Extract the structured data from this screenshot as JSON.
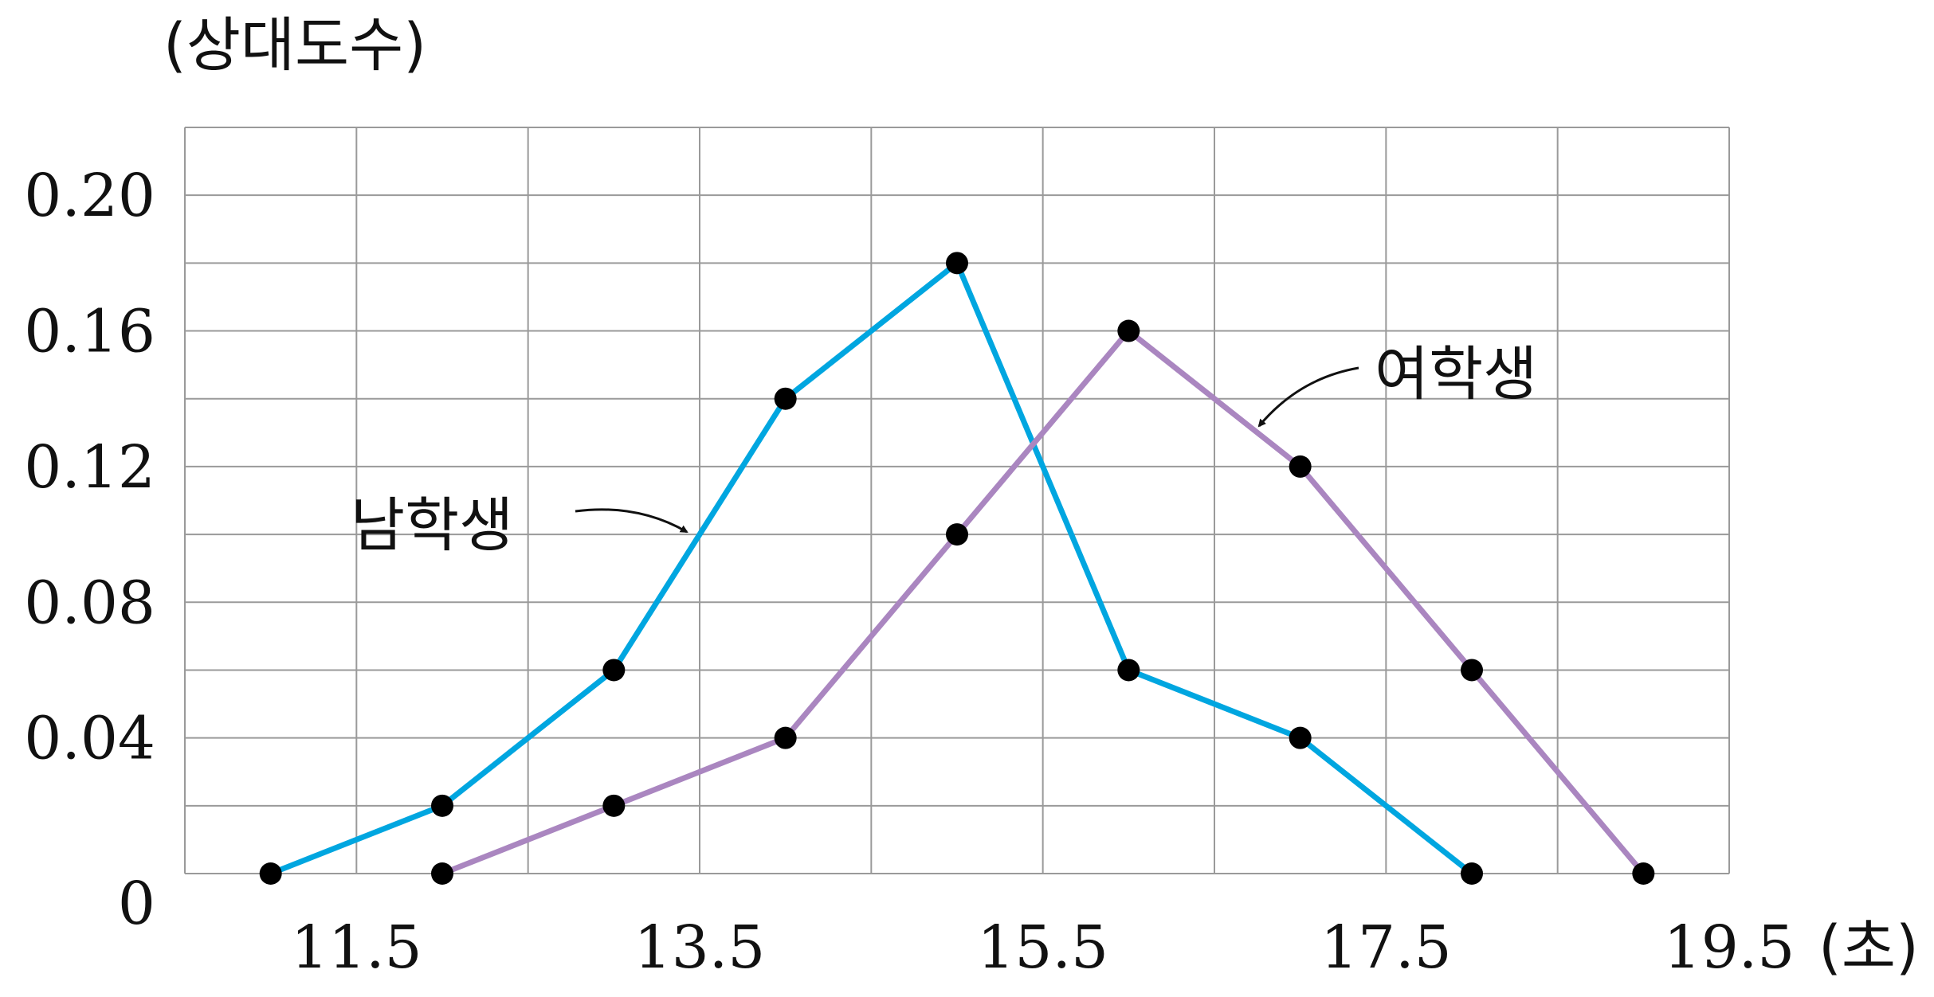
{
  "chart_data": {
    "type": "line",
    "ylabel": "(상대도수)",
    "xlabel": "(초)",
    "x_tick_labels": [
      "11.5",
      "13.5",
      "15.5",
      "17.5",
      "19.5"
    ],
    "x_ticks": [
      11.5,
      13.5,
      15.5,
      17.5,
      19.5
    ],
    "y_tick_labels": [
      "0",
      "0.04",
      "0.08",
      "0.12",
      "0.16",
      "0.20"
    ],
    "y_ticks": [
      0,
      0.04,
      0.08,
      0.12,
      0.16,
      0.2
    ],
    "xlim": [
      10.5,
      19.5
    ],
    "ylim": [
      0,
      0.22
    ],
    "grid": true,
    "series": [
      {
        "name": "남학생",
        "color": "#00a6e0",
        "points": [
          [
            11.0,
            0
          ],
          [
            12.0,
            0.02
          ],
          [
            13.0,
            0.06
          ],
          [
            14.0,
            0.14
          ],
          [
            15.0,
            0.18
          ],
          [
            16.0,
            0.06
          ],
          [
            17.0,
            0.04
          ],
          [
            18.0,
            0
          ]
        ]
      },
      {
        "name": "여학생",
        "color": "#aa86c0",
        "points": [
          [
            12.0,
            0
          ],
          [
            13.0,
            0.02
          ],
          [
            14.0,
            0.04
          ],
          [
            15.0,
            0.1
          ],
          [
            16.0,
            0.16
          ],
          [
            17.0,
            0.12
          ],
          [
            18.0,
            0.06
          ],
          [
            19.0,
            0
          ]
        ]
      }
    ]
  }
}
